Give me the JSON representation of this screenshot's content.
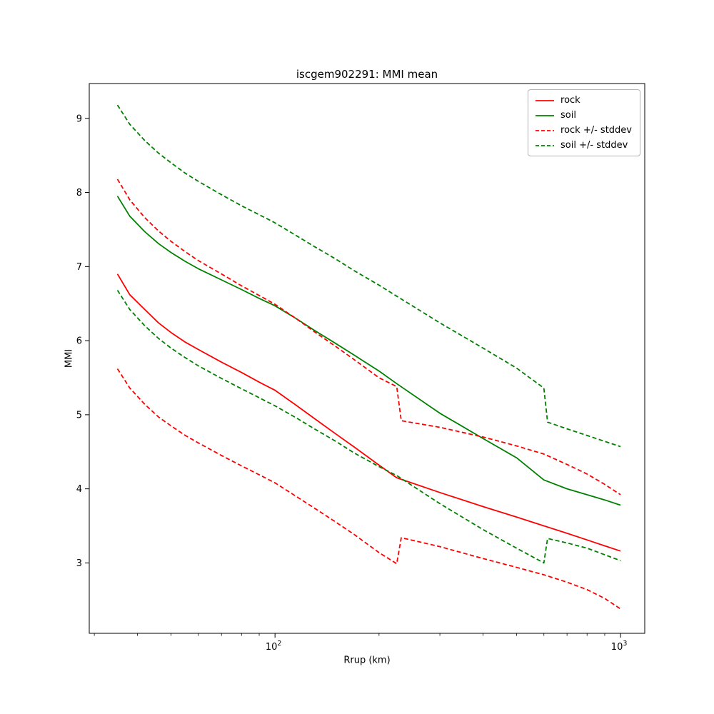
{
  "title": "iscgem902291: MMI mean",
  "chart_data": {
    "type": "line",
    "title": "iscgem902291: MMI mean",
    "xlabel": "Rrup (km)",
    "ylabel": "MMI",
    "xscale": "log",
    "xlim": [
      29,
      1175
    ],
    "ylim": [
      2.05,
      9.47
    ],
    "grid": false,
    "legend_position": "upper right",
    "x_major_ticks": [
      {
        "value": 100,
        "base": "10",
        "exp": "2"
      },
      {
        "value": 1000,
        "base": "10",
        "exp": "3"
      }
    ],
    "x_minor_ticks": [
      30,
      40,
      50,
      60,
      70,
      80,
      90,
      200,
      300,
      400,
      500,
      600,
      700,
      800,
      900
    ],
    "y_ticks": [
      3,
      4,
      5,
      6,
      7,
      8,
      9
    ],
    "colors": {
      "rock": "#ff0000",
      "soil": "#008000",
      "frame": "#000000"
    },
    "series": [
      {
        "id": "rock-mean",
        "legend_label": "rock",
        "color": "#ff0000",
        "dash": false,
        "points": [
          [
            35,
            6.9
          ],
          [
            38,
            6.62
          ],
          [
            42,
            6.42
          ],
          [
            46,
            6.24
          ],
          [
            50,
            6.11
          ],
          [
            55,
            5.98
          ],
          [
            60,
            5.88
          ],
          [
            70,
            5.71
          ],
          [
            80,
            5.57
          ],
          [
            90,
            5.44
          ],
          [
            100,
            5.33
          ],
          [
            115,
            5.13
          ],
          [
            130,
            4.95
          ],
          [
            150,
            4.74
          ],
          [
            170,
            4.56
          ],
          [
            200,
            4.32
          ],
          [
            225,
            4.15
          ],
          [
            300,
            3.95
          ],
          [
            400,
            3.76
          ],
          [
            500,
            3.62
          ],
          [
            600,
            3.5
          ],
          [
            700,
            3.4
          ],
          [
            800,
            3.31
          ],
          [
            900,
            3.23
          ],
          [
            1000,
            3.16
          ]
        ]
      },
      {
        "id": "soil-mean",
        "legend_label": "soil",
        "color": "#008000",
        "dash": false,
        "points": [
          [
            35,
            7.95
          ],
          [
            38,
            7.68
          ],
          [
            42,
            7.47
          ],
          [
            46,
            7.31
          ],
          [
            50,
            7.19
          ],
          [
            55,
            7.07
          ],
          [
            60,
            6.97
          ],
          [
            70,
            6.82
          ],
          [
            80,
            6.69
          ],
          [
            90,
            6.57
          ],
          [
            100,
            6.47
          ],
          [
            115,
            6.3
          ],
          [
            130,
            6.14
          ],
          [
            150,
            5.96
          ],
          [
            170,
            5.8
          ],
          [
            200,
            5.59
          ],
          [
            225,
            5.42
          ],
          [
            300,
            5.02
          ],
          [
            400,
            4.68
          ],
          [
            500,
            4.42
          ],
          [
            600,
            4.12
          ],
          [
            700,
            4.0
          ],
          [
            800,
            3.92
          ],
          [
            900,
            3.85
          ],
          [
            1000,
            3.78
          ]
        ]
      },
      {
        "id": "rock-upper-stddev",
        "legend_label": "rock +/- stddev",
        "color": "#ff0000",
        "dash": true,
        "points": [
          [
            35,
            8.18
          ],
          [
            38,
            7.9
          ],
          [
            42,
            7.66
          ],
          [
            46,
            7.48
          ],
          [
            50,
            7.34
          ],
          [
            55,
            7.2
          ],
          [
            60,
            7.08
          ],
          [
            70,
            6.9
          ],
          [
            80,
            6.74
          ],
          [
            90,
            6.61
          ],
          [
            100,
            6.49
          ],
          [
            115,
            6.3
          ],
          [
            130,
            6.12
          ],
          [
            150,
            5.92
          ],
          [
            170,
            5.74
          ],
          [
            200,
            5.5
          ],
          [
            225,
            5.38
          ],
          [
            232,
            4.92
          ],
          [
            300,
            4.83
          ],
          [
            400,
            4.7
          ],
          [
            500,
            4.58
          ],
          [
            600,
            4.47
          ],
          [
            700,
            4.33
          ],
          [
            800,
            4.2
          ],
          [
            900,
            4.06
          ],
          [
            1000,
            3.92
          ]
        ]
      },
      {
        "id": "rock-lower-stddev",
        "legend_label": null,
        "color": "#ff0000",
        "dash": true,
        "points": [
          [
            35,
            5.62
          ],
          [
            38,
            5.36
          ],
          [
            42,
            5.14
          ],
          [
            46,
            4.97
          ],
          [
            50,
            4.85
          ],
          [
            55,
            4.72
          ],
          [
            60,
            4.62
          ],
          [
            70,
            4.45
          ],
          [
            80,
            4.31
          ],
          [
            90,
            4.19
          ],
          [
            100,
            4.08
          ],
          [
            115,
            3.9
          ],
          [
            130,
            3.74
          ],
          [
            150,
            3.55
          ],
          [
            170,
            3.38
          ],
          [
            200,
            3.14
          ],
          [
            225,
            2.99
          ],
          [
            232,
            3.34
          ],
          [
            300,
            3.22
          ],
          [
            400,
            3.06
          ],
          [
            500,
            2.94
          ],
          [
            600,
            2.84
          ],
          [
            700,
            2.74
          ],
          [
            800,
            2.64
          ],
          [
            900,
            2.52
          ],
          [
            1000,
            2.38
          ]
        ]
      },
      {
        "id": "soil-upper-stddev",
        "legend_label": "soil +/- stddev",
        "color": "#008000",
        "dash": true,
        "points": [
          [
            35,
            9.18
          ],
          [
            38,
            8.92
          ],
          [
            42,
            8.7
          ],
          [
            46,
            8.53
          ],
          [
            50,
            8.4
          ],
          [
            55,
            8.26
          ],
          [
            60,
            8.15
          ],
          [
            70,
            7.97
          ],
          [
            80,
            7.82
          ],
          [
            90,
            7.7
          ],
          [
            100,
            7.59
          ],
          [
            115,
            7.42
          ],
          [
            130,
            7.27
          ],
          [
            150,
            7.1
          ],
          [
            170,
            6.94
          ],
          [
            200,
            6.75
          ],
          [
            225,
            6.6
          ],
          [
            300,
            6.24
          ],
          [
            400,
            5.9
          ],
          [
            500,
            5.63
          ],
          [
            600,
            5.36
          ],
          [
            615,
            4.9
          ],
          [
            700,
            4.81
          ],
          [
            800,
            4.72
          ],
          [
            900,
            4.64
          ],
          [
            1000,
            4.57
          ]
        ]
      },
      {
        "id": "soil-lower-stddev",
        "legend_label": null,
        "color": "#008000",
        "dash": true,
        "points": [
          [
            35,
            6.68
          ],
          [
            38,
            6.42
          ],
          [
            42,
            6.2
          ],
          [
            46,
            6.03
          ],
          [
            50,
            5.9
          ],
          [
            55,
            5.77
          ],
          [
            60,
            5.66
          ],
          [
            70,
            5.49
          ],
          [
            80,
            5.35
          ],
          [
            90,
            5.23
          ],
          [
            100,
            5.12
          ],
          [
            115,
            4.96
          ],
          [
            130,
            4.81
          ],
          [
            150,
            4.64
          ],
          [
            170,
            4.48
          ],
          [
            200,
            4.3
          ],
          [
            225,
            4.18
          ],
          [
            300,
            3.8
          ],
          [
            400,
            3.45
          ],
          [
            500,
            3.2
          ],
          [
            600,
            3.0
          ],
          [
            615,
            3.33
          ],
          [
            700,
            3.27
          ],
          [
            800,
            3.2
          ],
          [
            900,
            3.11
          ],
          [
            1000,
            3.03
          ]
        ]
      }
    ]
  }
}
